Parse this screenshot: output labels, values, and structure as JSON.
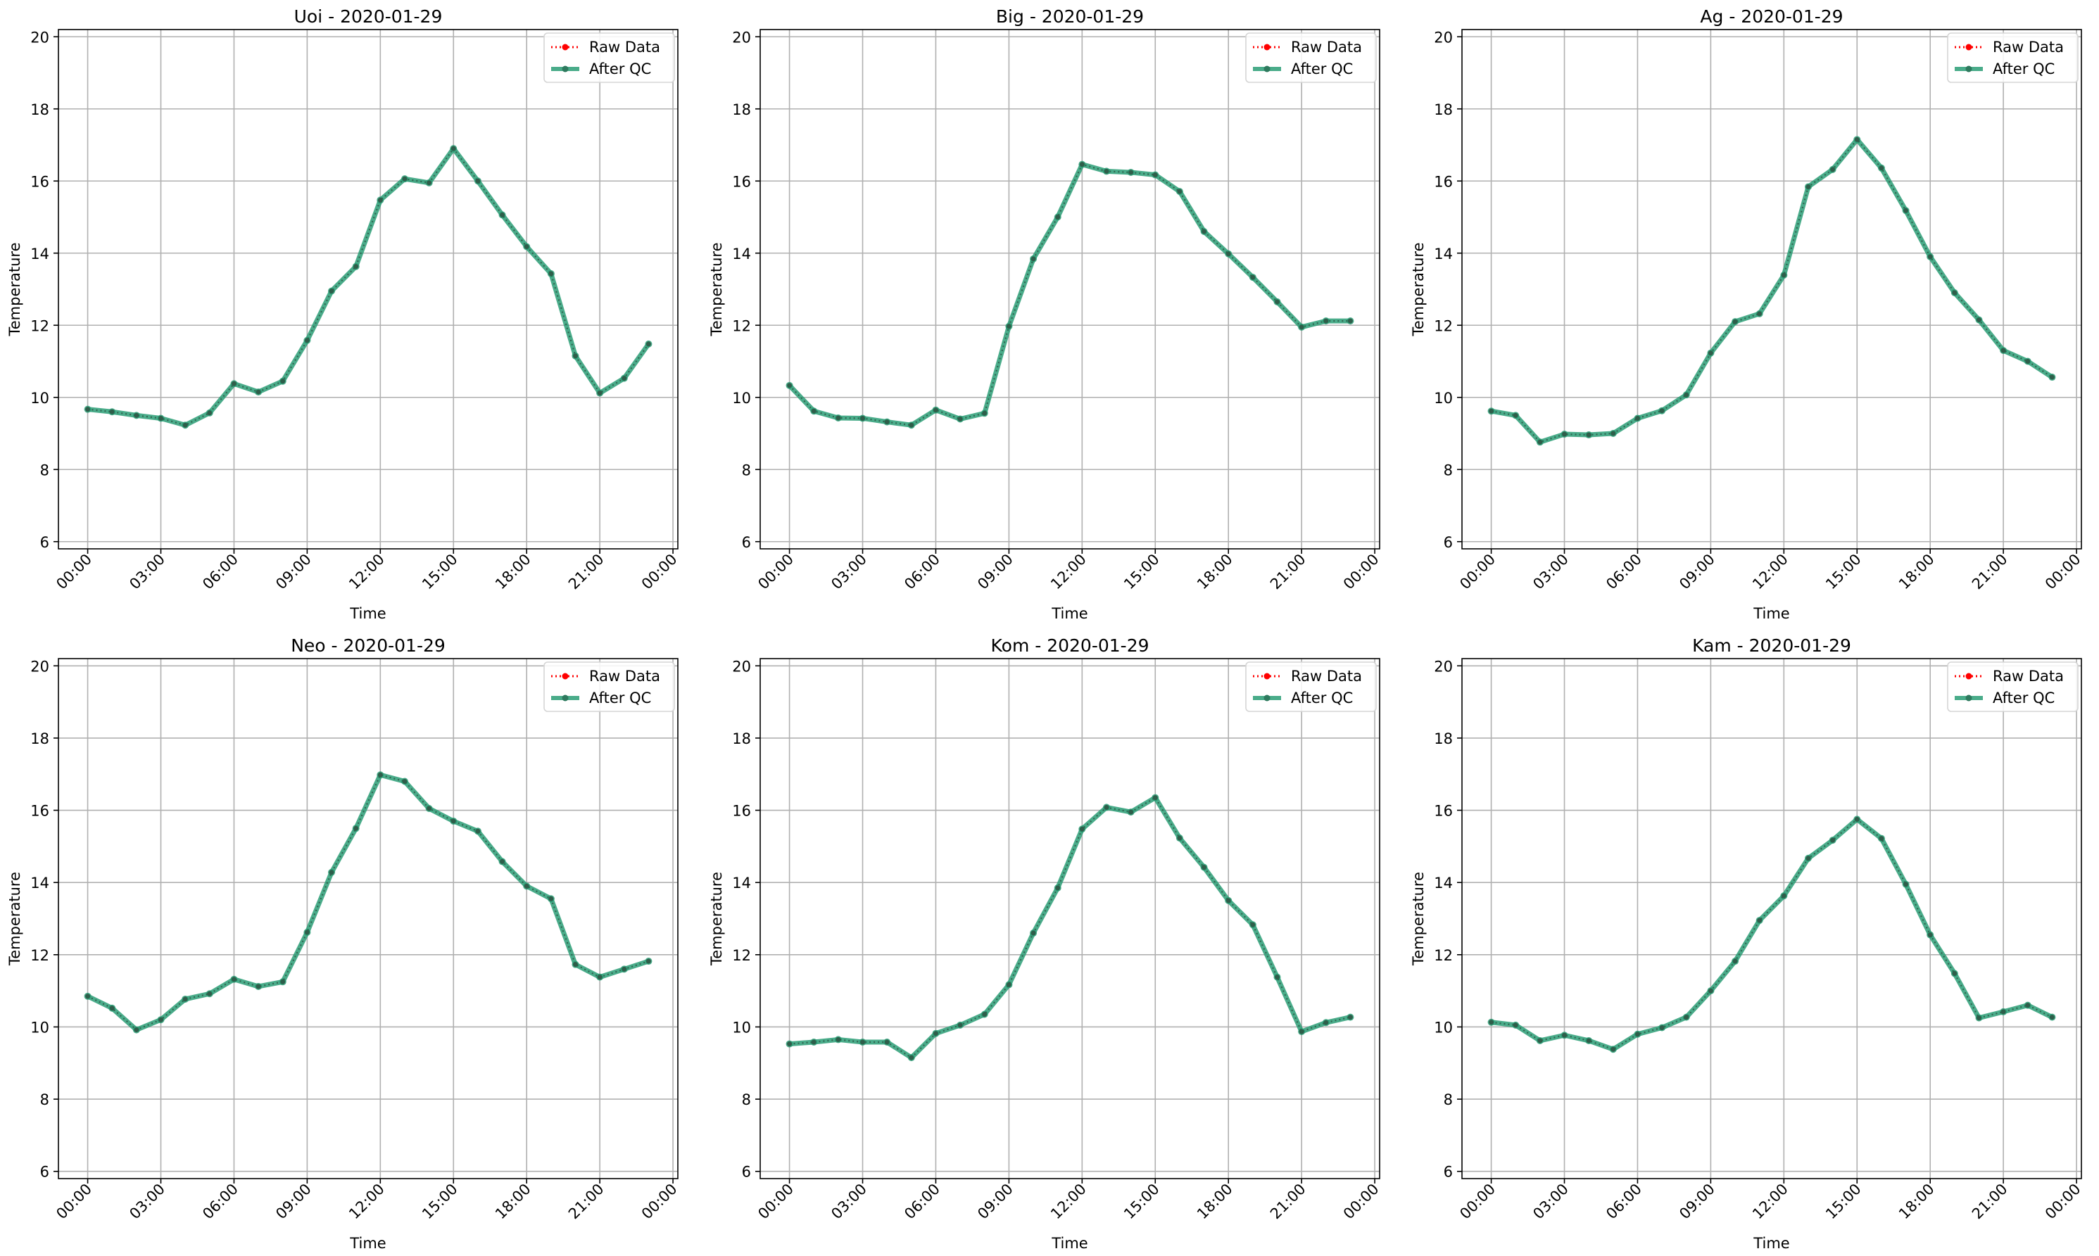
{
  "chart_data": [
    {
      "type": "line",
      "title": "Uoi - 2020-01-29",
      "xlabel": "Time",
      "ylabel": "Temperature",
      "x_hours": [
        0,
        1,
        2,
        3,
        4,
        5,
        6,
        7,
        8,
        9,
        10,
        11,
        12,
        13,
        14,
        15,
        16,
        17,
        18,
        19,
        20,
        21,
        22,
        23
      ],
      "x_tick_labels": [
        "00:00",
        "03:00",
        "06:00",
        "09:00",
        "12:00",
        "15:00",
        "18:00",
        "21:00",
        "00:00"
      ],
      "xlim_hours": [
        -1.2,
        24.2
      ],
      "ylim": [
        5.8,
        20.2
      ],
      "y_ticks": [
        6,
        8,
        10,
        12,
        14,
        16,
        18,
        20
      ],
      "grid": true,
      "legend_position": "top-right",
      "series": [
        {
          "name": "Raw Data",
          "color": "#ff0000",
          "style": "dotted",
          "values": [
            9.67,
            9.6,
            9.5,
            9.42,
            9.23,
            9.57,
            10.38,
            10.15,
            10.45,
            11.58,
            12.95,
            13.63,
            15.47,
            16.06,
            15.95,
            16.9,
            16.0,
            15.06,
            14.18,
            13.43,
            11.15,
            10.12,
            10.53,
            11.48
          ]
        },
        {
          "name": "After QC",
          "color": "#2a9d75",
          "style": "solid",
          "values": [
            9.67,
            9.6,
            9.5,
            9.42,
            9.23,
            9.57,
            10.38,
            10.15,
            10.45,
            11.58,
            12.95,
            13.63,
            15.47,
            16.06,
            15.95,
            16.9,
            16.0,
            15.06,
            14.18,
            13.43,
            11.15,
            10.12,
            10.53,
            11.48
          ]
        }
      ]
    },
    {
      "type": "line",
      "title": "Big - 2020-01-29",
      "xlabel": "Time",
      "ylabel": "Temperature",
      "x_hours": [
        0,
        1,
        2,
        3,
        4,
        5,
        6,
        7,
        8,
        9,
        10,
        11,
        12,
        13,
        14,
        15,
        16,
        17,
        18,
        19,
        20,
        21,
        22,
        23
      ],
      "x_tick_labels": [
        "00:00",
        "03:00",
        "06:00",
        "09:00",
        "12:00",
        "15:00",
        "18:00",
        "21:00",
        "00:00"
      ],
      "xlim_hours": [
        -1.2,
        24.2
      ],
      "ylim": [
        5.8,
        20.2
      ],
      "y_ticks": [
        6,
        8,
        10,
        12,
        14,
        16,
        18,
        20
      ],
      "grid": true,
      "legend_position": "top-right",
      "series": [
        {
          "name": "Raw Data",
          "color": "#ff0000",
          "style": "dotted",
          "values": [
            10.33,
            9.62,
            9.43,
            9.42,
            9.32,
            9.23,
            9.65,
            9.4,
            9.56,
            11.97,
            13.84,
            15.0,
            16.46,
            16.27,
            16.24,
            16.17,
            15.71,
            14.6,
            13.98,
            13.33,
            12.65,
            11.95,
            12.12,
            12.12
          ]
        },
        {
          "name": "After QC",
          "color": "#2a9d75",
          "style": "solid",
          "values": [
            10.33,
            9.62,
            9.43,
            9.42,
            9.32,
            9.23,
            9.65,
            9.4,
            9.56,
            11.97,
            13.84,
            15.0,
            16.46,
            16.27,
            16.24,
            16.17,
            15.71,
            14.6,
            13.98,
            13.33,
            12.65,
            11.95,
            12.12,
            12.12
          ]
        }
      ]
    },
    {
      "type": "line",
      "title": "Ag - 2020-01-29",
      "xlabel": "Time",
      "ylabel": "Temperature",
      "x_hours": [
        0,
        1,
        2,
        3,
        4,
        5,
        6,
        7,
        8,
        9,
        10,
        11,
        12,
        13,
        14,
        15,
        16,
        17,
        18,
        19,
        20,
        21,
        22,
        23
      ],
      "x_tick_labels": [
        "00:00",
        "03:00",
        "06:00",
        "09:00",
        "12:00",
        "15:00",
        "18:00",
        "21:00",
        "00:00"
      ],
      "xlim_hours": [
        -1.2,
        24.2
      ],
      "ylim": [
        5.8,
        20.2
      ],
      "y_ticks": [
        6,
        8,
        10,
        12,
        14,
        16,
        18,
        20
      ],
      "grid": true,
      "legend_position": "top-right",
      "series": [
        {
          "name": "Raw Data",
          "color": "#ff0000",
          "style": "dotted",
          "values": [
            9.62,
            9.5,
            8.76,
            8.98,
            8.96,
            9.0,
            9.42,
            9.63,
            10.07,
            11.23,
            12.1,
            12.32,
            13.39,
            15.84,
            16.32,
            17.15,
            16.36,
            15.18,
            13.9,
            12.9,
            12.15,
            11.3,
            11.0,
            10.56
          ]
        },
        {
          "name": "After QC",
          "color": "#2a9d75",
          "style": "solid",
          "values": [
            9.62,
            9.5,
            8.76,
            8.98,
            8.96,
            9.0,
            9.42,
            9.63,
            10.07,
            11.23,
            12.1,
            12.32,
            13.39,
            15.84,
            16.32,
            17.15,
            16.36,
            15.18,
            13.9,
            12.9,
            12.15,
            11.3,
            11.0,
            10.56
          ]
        }
      ]
    },
    {
      "type": "line",
      "title": "Neo - 2020-01-29",
      "xlabel": "Time",
      "ylabel": "Temperature",
      "x_hours": [
        0,
        1,
        2,
        3,
        4,
        5,
        6,
        7,
        8,
        9,
        10,
        11,
        12,
        13,
        14,
        15,
        16,
        17,
        18,
        19,
        20,
        21,
        22,
        23
      ],
      "x_tick_labels": [
        "00:00",
        "03:00",
        "06:00",
        "09:00",
        "12:00",
        "15:00",
        "18:00",
        "21:00",
        "00:00"
      ],
      "xlim_hours": [
        -1.2,
        24.2
      ],
      "ylim": [
        5.8,
        20.2
      ],
      "y_ticks": [
        6,
        8,
        10,
        12,
        14,
        16,
        18,
        20
      ],
      "grid": true,
      "legend_position": "top-right",
      "series": [
        {
          "name": "Raw Data",
          "color": "#ff0000",
          "style": "dotted",
          "values": [
            10.85,
            10.52,
            9.92,
            10.2,
            10.77,
            10.92,
            11.32,
            11.12,
            11.25,
            12.62,
            14.28,
            15.5,
            16.98,
            16.8,
            16.05,
            15.7,
            15.42,
            14.58,
            13.9,
            13.55,
            11.73,
            11.38,
            11.6,
            11.82
          ]
        },
        {
          "name": "After QC",
          "color": "#2a9d75",
          "style": "solid",
          "values": [
            10.85,
            10.52,
            9.92,
            10.2,
            10.77,
            10.92,
            11.32,
            11.12,
            11.25,
            12.62,
            14.28,
            15.5,
            16.98,
            16.8,
            16.05,
            15.7,
            15.42,
            14.58,
            13.9,
            13.55,
            11.73,
            11.38,
            11.6,
            11.82
          ]
        }
      ]
    },
    {
      "type": "line",
      "title": "Kom - 2020-01-29",
      "xlabel": "Time",
      "ylabel": "Temperature",
      "x_hours": [
        0,
        1,
        2,
        3,
        4,
        5,
        6,
        7,
        8,
        9,
        10,
        11,
        12,
        13,
        14,
        15,
        16,
        17,
        18,
        19,
        20,
        21,
        22,
        23
      ],
      "x_tick_labels": [
        "00:00",
        "03:00",
        "06:00",
        "09:00",
        "12:00",
        "15:00",
        "18:00",
        "21:00",
        "00:00"
      ],
      "xlim_hours": [
        -1.2,
        24.2
      ],
      "ylim": [
        5.8,
        20.2
      ],
      "y_ticks": [
        6,
        8,
        10,
        12,
        14,
        16,
        18,
        20
      ],
      "grid": true,
      "legend_position": "top-right",
      "series": [
        {
          "name": "Raw Data",
          "color": "#ff0000",
          "style": "dotted",
          "values": [
            9.53,
            9.58,
            9.65,
            9.58,
            9.58,
            9.15,
            9.82,
            10.05,
            10.35,
            11.17,
            12.6,
            13.85,
            15.48,
            16.08,
            15.95,
            16.35,
            15.23,
            14.42,
            13.5,
            12.83,
            11.38,
            9.87,
            10.12,
            10.27
          ]
        },
        {
          "name": "After QC",
          "color": "#2a9d75",
          "style": "solid",
          "values": [
            9.53,
            9.58,
            9.65,
            9.58,
            9.58,
            9.15,
            9.82,
            10.05,
            10.35,
            11.17,
            12.6,
            13.85,
            15.48,
            16.08,
            15.95,
            16.35,
            15.23,
            14.42,
            13.5,
            12.83,
            11.38,
            9.87,
            10.12,
            10.27
          ]
        }
      ]
    },
    {
      "type": "line",
      "title": "Kam - 2020-01-29",
      "xlabel": "Time",
      "ylabel": "Temperature",
      "x_hours": [
        0,
        1,
        2,
        3,
        4,
        5,
        6,
        7,
        8,
        9,
        10,
        11,
        12,
        13,
        14,
        15,
        16,
        17,
        18,
        19,
        20,
        21,
        22,
        23
      ],
      "x_tick_labels": [
        "00:00",
        "03:00",
        "06:00",
        "09:00",
        "12:00",
        "15:00",
        "18:00",
        "21:00",
        "00:00"
      ],
      "xlim_hours": [
        -1.2,
        24.2
      ],
      "ylim": [
        5.8,
        20.2
      ],
      "y_ticks": [
        6,
        8,
        10,
        12,
        14,
        16,
        18,
        20
      ],
      "grid": true,
      "legend_position": "top-right",
      "series": [
        {
          "name": "Raw Data",
          "color": "#ff0000",
          "style": "dotted",
          "values": [
            10.13,
            10.05,
            9.62,
            9.77,
            9.62,
            9.38,
            9.8,
            9.98,
            10.27,
            11.0,
            11.82,
            12.95,
            13.63,
            14.67,
            15.17,
            15.75,
            15.22,
            13.95,
            12.55,
            11.48,
            10.25,
            10.42,
            10.6,
            10.27
          ]
        },
        {
          "name": "After QC",
          "color": "#2a9d75",
          "style": "solid",
          "values": [
            10.13,
            10.05,
            9.62,
            9.77,
            9.62,
            9.38,
            9.8,
            9.98,
            10.27,
            11.0,
            11.82,
            12.95,
            13.63,
            14.67,
            15.17,
            15.75,
            15.22,
            13.95,
            12.55,
            11.48,
            10.25,
            10.42,
            10.6,
            10.27
          ]
        }
      ]
    }
  ]
}
